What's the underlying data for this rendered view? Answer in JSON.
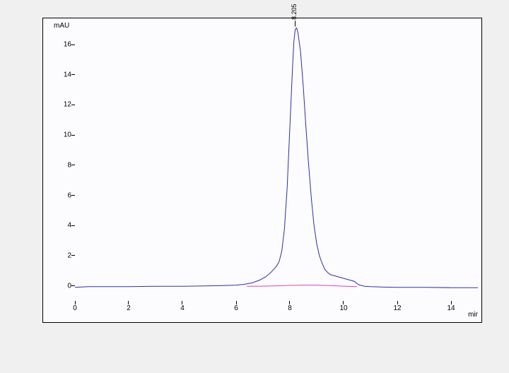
{
  "chart": {
    "type": "line",
    "x_axis": {
      "label": "mir",
      "min": 0,
      "max": 15,
      "ticks": [
        0,
        2,
        4,
        6,
        8,
        10,
        12,
        14
      ],
      "label_fontsize": 10
    },
    "y_axis": {
      "label": "mAU",
      "min": -1,
      "max": 17.5,
      "ticks": [
        0,
        2,
        4,
        6,
        8,
        10,
        12,
        14,
        16
      ],
      "label_fontsize": 10
    },
    "series": [
      {
        "name": "chromatogram",
        "color": "#3030b0",
        "line_width": 1,
        "data": [
          [
            0,
            -0.1
          ],
          [
            0.5,
            -0.05
          ],
          [
            1,
            -0.05
          ],
          [
            2,
            -0.05
          ],
          [
            3,
            -0.03
          ],
          [
            4,
            -0.03
          ],
          [
            5,
            0
          ],
          [
            5.5,
            0.02
          ],
          [
            6,
            0.05
          ],
          [
            6.3,
            0.1
          ],
          [
            6.6,
            0.2
          ],
          [
            6.9,
            0.4
          ],
          [
            7.1,
            0.6
          ],
          [
            7.3,
            0.9
          ],
          [
            7.4,
            1.1
          ],
          [
            7.5,
            1.3
          ],
          [
            7.6,
            1.6
          ],
          [
            7.7,
            2.3
          ],
          [
            7.8,
            3.8
          ],
          [
            7.9,
            6.5
          ],
          [
            8.0,
            10.5
          ],
          [
            8.1,
            14.5
          ],
          [
            8.15,
            16.2
          ],
          [
            8.2,
            17.0
          ],
          [
            8.25,
            17.1
          ],
          [
            8.3,
            16.8
          ],
          [
            8.4,
            15.5
          ],
          [
            8.5,
            13.2
          ],
          [
            8.6,
            10.5
          ],
          [
            8.7,
            8.0
          ],
          [
            8.8,
            5.8
          ],
          [
            8.9,
            4.0
          ],
          [
            9.0,
            2.8
          ],
          [
            9.1,
            2.0
          ],
          [
            9.2,
            1.5
          ],
          [
            9.3,
            1.1
          ],
          [
            9.4,
            0.9
          ],
          [
            9.5,
            0.75
          ],
          [
            9.6,
            0.7
          ],
          [
            9.7,
            0.65
          ],
          [
            9.8,
            0.6
          ],
          [
            9.9,
            0.55
          ],
          [
            10.0,
            0.5
          ],
          [
            10.2,
            0.4
          ],
          [
            10.4,
            0.3
          ],
          [
            10.5,
            0.15
          ],
          [
            10.6,
            0.05
          ],
          [
            10.8,
            -0.03
          ],
          [
            11,
            -0.05
          ],
          [
            11.5,
            -0.08
          ],
          [
            12,
            -0.1
          ],
          [
            13,
            -0.1
          ],
          [
            14,
            -0.12
          ],
          [
            14.5,
            -0.12
          ],
          [
            15,
            -0.12
          ]
        ]
      },
      {
        "name": "baseline",
        "color": "#e040c0",
        "line_width": 1,
        "data": [
          [
            6.4,
            -0.03
          ],
          [
            7,
            -0.02
          ],
          [
            7.5,
            0
          ],
          [
            8,
            0.03
          ],
          [
            8.5,
            0.05
          ],
          [
            9,
            0.05
          ],
          [
            9.5,
            0.02
          ],
          [
            10,
            -0.02
          ],
          [
            10.5,
            -0.05
          ]
        ]
      }
    ],
    "peak_markers": [
      {
        "x": 8.2,
        "y": 17.1,
        "label": "8.205"
      }
    ],
    "background_color": "#fcfcfe",
    "border_color": "#000000",
    "peak_tick_color": "#000000"
  }
}
